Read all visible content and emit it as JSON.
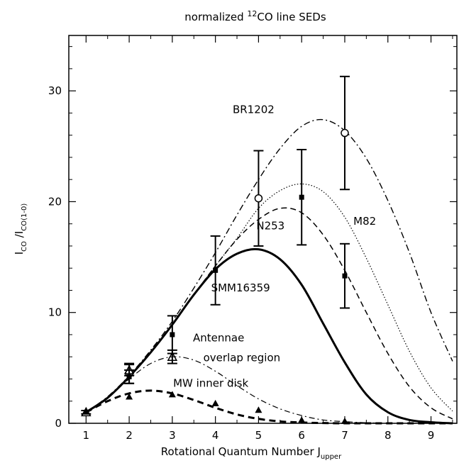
{
  "chart_data": {
    "type": "line",
    "title_parts": {
      "pre": "normalized ",
      "sup": "12",
      "post": "CO line SEDs"
    },
    "xlabel_parts": {
      "main": "Rotational Quantum Number J",
      "sub": "upper"
    },
    "ylabel_parts": {
      "i1": "I",
      "s1": "CO",
      "mid": " /I",
      "s2": "CO(1-0)"
    },
    "xlim": [
      0.6,
      9.6
    ],
    "ylim": [
      0,
      35
    ],
    "xticks": [
      1,
      2,
      3,
      4,
      5,
      6,
      7,
      8,
      9
    ],
    "yticks": [
      0,
      10,
      20,
      30
    ],
    "grid": false,
    "series": [
      {
        "name": "BR1202",
        "style": "dash-dot",
        "x": [
          1,
          1.5,
          2,
          2.5,
          3,
          3.5,
          4,
          4.5,
          5,
          5.5,
          6,
          6.5,
          7,
          7.5,
          8,
          8.5,
          9,
          9.5
        ],
        "y": [
          1,
          2.4,
          4.3,
          6.6,
          9.2,
          12.2,
          15.4,
          18.8,
          22.0,
          24.8,
          26.8,
          27.4,
          26.4,
          23.9,
          20.1,
          15.4,
          10.0,
          5.6
        ]
      },
      {
        "name": "M82",
        "style": "dotted",
        "x": [
          1,
          1.5,
          2,
          2.5,
          3,
          3.5,
          4,
          4.5,
          5,
          5.5,
          6,
          6.5,
          7,
          7.5,
          8,
          8.5,
          9,
          9.5
        ],
        "y": [
          1,
          2.3,
          4.2,
          6.4,
          8.9,
          11.6,
          14.2,
          16.7,
          19.4,
          21.0,
          21.6,
          20.9,
          18.6,
          14.9,
          10.7,
          6.5,
          3.2,
          1.1
        ]
      },
      {
        "name": "N253",
        "style": "dashed",
        "x": [
          1,
          1.5,
          2,
          2.5,
          3,
          3.5,
          4,
          4.5,
          5,
          5.5,
          6,
          6.5,
          7,
          7.5,
          8,
          8.5,
          9,
          9.5
        ],
        "y": [
          1,
          2.3,
          4.2,
          6.4,
          8.9,
          11.6,
          14.2,
          16.6,
          18.4,
          19.4,
          19.0,
          17.0,
          13.8,
          10.0,
          6.3,
          3.3,
          1.4,
          0.4
        ]
      },
      {
        "name": "SMM16359",
        "style": "solid-thick",
        "x": [
          1,
          1.5,
          2,
          2.5,
          3,
          3.5,
          4,
          4.5,
          5,
          5.5,
          6,
          6.5,
          7,
          7.5,
          8,
          8.5,
          9,
          9.5
        ],
        "y": [
          1,
          2.3,
          4.2,
          6.4,
          8.9,
          11.6,
          13.9,
          15.3,
          15.7,
          14.8,
          12.5,
          9.0,
          5.5,
          2.6,
          1.0,
          0.3,
          0.1,
          0
        ]
      },
      {
        "name": "Antennae overlap region",
        "style": "dash-dot-thin",
        "x": [
          1,
          1.5,
          2,
          2.5,
          3,
          3.5,
          4,
          4.5,
          5,
          5.5,
          6,
          6.5,
          7,
          7.5,
          8,
          8.5,
          9,
          9.5
        ],
        "y": [
          1,
          2.3,
          4.0,
          5.4,
          6.0,
          5.7,
          4.7,
          3.4,
          2.2,
          1.3,
          0.7,
          0.3,
          0.15,
          0.05,
          0,
          0,
          0,
          0
        ]
      },
      {
        "name": "MW inner disk",
        "style": "dashed-thick",
        "x": [
          1,
          1.5,
          2,
          2.5,
          3,
          3.5,
          4,
          4.5,
          5,
          5.5,
          6,
          6.5,
          7,
          7.5,
          8,
          8.5,
          9,
          9.5
        ],
        "y": [
          1,
          2.0,
          2.7,
          2.95,
          2.7,
          2.1,
          1.4,
          0.8,
          0.4,
          0.17,
          0.07,
          0.02,
          0,
          0,
          0,
          0,
          0,
          0
        ]
      }
    ],
    "points": [
      {
        "marker": "open-circle",
        "x": 2,
        "y": 4.5,
        "yerr": 0.9
      },
      {
        "marker": "open-circle",
        "x": 5,
        "y": 20.3,
        "yerr": 4.3
      },
      {
        "marker": "open-circle",
        "x": 7,
        "y": 26.2,
        "yerr": 5.1
      },
      {
        "marker": "filled-square",
        "x": 2,
        "y": 4.2,
        "yerr": 0.6
      },
      {
        "marker": "filled-square",
        "x": 3,
        "y": 8.0,
        "yerr": 1.7
      },
      {
        "marker": "filled-square",
        "x": 4,
        "y": 13.8,
        "yerr": 3.1
      },
      {
        "marker": "filled-square",
        "x": 6,
        "y": 20.4,
        "yerr": 4.3
      },
      {
        "marker": "filled-square",
        "x": 7,
        "y": 13.3,
        "yerr": 2.9
      },
      {
        "marker": "open-triangle",
        "x": 1,
        "y": 1.0,
        "yerr": 0.15
      },
      {
        "marker": "open-triangle",
        "x": 2,
        "y": 4.8,
        "yerr": 0.5
      },
      {
        "marker": "open-triangle",
        "x": 3,
        "y": 6.0,
        "yerr": 0.6
      },
      {
        "marker": "filled-triangle",
        "x": 1,
        "y": 1.1,
        "yerr": 0
      },
      {
        "marker": "filled-triangle",
        "x": 2,
        "y": 2.4,
        "yerr": 0
      },
      {
        "marker": "filled-triangle",
        "x": 3,
        "y": 2.6,
        "yerr": 0
      },
      {
        "marker": "filled-triangle",
        "x": 4,
        "y": 1.8,
        "yerr": 0
      },
      {
        "marker": "filled-triangle",
        "x": 5,
        "y": 1.2,
        "yerr": 0
      },
      {
        "marker": "filled-triangle",
        "x": 6,
        "y": 0.3,
        "yerr": 0
      },
      {
        "marker": "filled-triangle",
        "x": 7,
        "y": 0.2,
        "yerr": 0
      }
    ],
    "annotations": [
      {
        "name": "br1202",
        "text": "BR1202",
        "x": 4.4,
        "y": 28.0
      },
      {
        "name": "m82",
        "text": "M82",
        "x": 7.2,
        "y": 17.9
      },
      {
        "name": "n253",
        "text": "N253",
        "x": 4.95,
        "y": 17.5
      },
      {
        "name": "smm16359",
        "text": "SMM16359",
        "x": 3.9,
        "y": 11.9
      },
      {
        "name": "antennae",
        "text": "Antennae",
        "x": 3.48,
        "y": 7.4
      },
      {
        "name": "overlap",
        "text": "overlap region",
        "x": 3.72,
        "y": 5.6
      },
      {
        "name": "mw",
        "text": "MW inner disk",
        "x": 3.02,
        "y": 3.3
      }
    ]
  }
}
